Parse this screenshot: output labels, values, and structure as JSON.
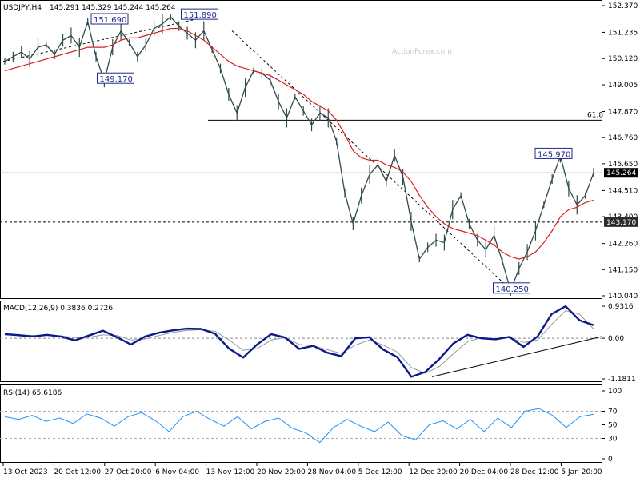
{
  "header": {
    "symbol": "USDJPY,H4",
    "ohlc": "145.291 145.329 145.244 145.264"
  },
  "watermark": "ActionForex.com",
  "chart_data": [
    {
      "type": "line",
      "name": "price",
      "ylim": [
        140.04,
        152.37
      ],
      "price_axis_ticks": [
        "152.370",
        "151.235",
        "150.120",
        "149.005",
        "147.870",
        "146.760",
        "145.650",
        "144.510",
        "143.400",
        "142.260",
        "141.150",
        "140.040"
      ],
      "current_price": "145.264",
      "support_level": "143.170",
      "fib_label": "61.8",
      "fib_level": 147.5,
      "annotations": [
        {
          "label": "151.690",
          "x": 0.18,
          "y": 151.69
        },
        {
          "label": "149.170",
          "x": 0.19,
          "y": 149.17
        },
        {
          "label": "151.890",
          "x": 0.33,
          "y": 151.89
        },
        {
          "label": "140.250",
          "x": 0.85,
          "y": 140.25
        },
        {
          "label": "145.970",
          "x": 0.92,
          "y": 145.97
        }
      ],
      "close_series": [
        150.0,
        150.2,
        150.4,
        150.1,
        150.6,
        150.7,
        150.3,
        150.9,
        151.1,
        150.6,
        151.69,
        150.2,
        149.17,
        150.6,
        151.3,
        150.8,
        150.2,
        150.7,
        151.4,
        151.6,
        151.89,
        151.5,
        151.2,
        150.9,
        151.3,
        150.5,
        149.7,
        148.6,
        147.8,
        148.9,
        149.6,
        149.5,
        149.2,
        148.3,
        147.6,
        148.5,
        147.9,
        147.3,
        147.8,
        147.6,
        146.6,
        144.4,
        143.1,
        144.3,
        145.2,
        145.6,
        144.9,
        146.0,
        145.1,
        143.2,
        141.6,
        142.1,
        142.4,
        142.3,
        143.7,
        144.3,
        143.1,
        142.4,
        142.0,
        142.6,
        141.5,
        140.25,
        141.2,
        141.9,
        142.8,
        143.9,
        145.0,
        145.97,
        144.6,
        143.9,
        144.3,
        145.264
      ],
      "ma_series": [
        149.6,
        149.7,
        149.8,
        149.9,
        150.0,
        150.1,
        150.2,
        150.3,
        150.4,
        150.5,
        150.6,
        150.6,
        150.6,
        150.7,
        150.9,
        151.0,
        151.0,
        151.1,
        151.2,
        151.3,
        151.4,
        151.4,
        151.3,
        151.1,
        150.9,
        150.6,
        150.3,
        150.0,
        149.8,
        149.7,
        149.6,
        149.5,
        149.4,
        149.2,
        149.0,
        148.8,
        148.6,
        148.3,
        148.1,
        147.9,
        147.5,
        146.9,
        146.2,
        145.9,
        145.8,
        145.8,
        145.6,
        145.5,
        145.3,
        144.9,
        144.3,
        143.8,
        143.4,
        143.1,
        142.9,
        142.8,
        142.7,
        142.6,
        142.4,
        142.2,
        141.9,
        141.7,
        141.6,
        141.7,
        141.9,
        142.3,
        142.8,
        143.4,
        143.7,
        143.8,
        144.0,
        144.1
      ]
    },
    {
      "type": "line",
      "name": "macd",
      "title": "MACD(12,26,9) 0.3836 0.2726",
      "ylim": [
        -1.1811,
        0.9316
      ],
      "ticks": [
        "0.9316",
        "0.00",
        "-1.1811"
      ],
      "series": [
        {
          "name": "macd",
          "values": [
            0.12,
            0.09,
            0.05,
            0.1,
            0.05,
            -0.06,
            0.08,
            0.22,
            0.03,
            -0.18,
            0.05,
            0.16,
            0.23,
            0.28,
            0.27,
            0.13,
            -0.3,
            -0.56,
            -0.18,
            0.12,
            0.02,
            -0.31,
            -0.22,
            -0.42,
            -0.52,
            0.0,
            0.03,
            -0.33,
            -0.55,
            -1.12,
            -0.98,
            -0.6,
            -0.15,
            0.1,
            0.0,
            -0.03,
            0.04,
            -0.25,
            0.05,
            0.7,
            0.93,
            0.52,
            0.38
          ]
        },
        {
          "name": "signal",
          "values": [
            0.1,
            0.1,
            0.08,
            0.08,
            0.07,
            0.02,
            0.03,
            0.1,
            0.08,
            -0.05,
            -0.02,
            0.08,
            0.17,
            0.23,
            0.25,
            0.2,
            -0.05,
            -0.35,
            -0.3,
            -0.05,
            0.02,
            -0.18,
            -0.22,
            -0.33,
            -0.44,
            -0.2,
            -0.05,
            -0.2,
            -0.4,
            -0.85,
            -1.02,
            -0.82,
            -0.45,
            -0.1,
            0.02,
            -0.02,
            0.02,
            -0.12,
            -0.05,
            0.4,
            0.8,
            0.7,
            0.27
          ]
        }
      ]
    },
    {
      "type": "line",
      "name": "rsi",
      "title": "RSI(14) 65.6186",
      "ylim": [
        0,
        100
      ],
      "ticks": [
        "100",
        "70",
        "50",
        "30",
        "0"
      ],
      "series": [
        {
          "name": "rsi",
          "values": [
            62,
            58,
            64,
            55,
            60,
            52,
            66,
            60,
            48,
            62,
            68,
            56,
            40,
            62,
            70,
            58,
            48,
            62,
            44,
            55,
            60,
            45,
            38,
            24,
            46,
            58,
            48,
            40,
            54,
            34,
            28,
            50,
            56,
            44,
            58,
            40,
            60,
            46,
            70,
            74,
            64,
            46,
            62,
            65.6
          ]
        }
      ]
    }
  ],
  "x_axis_labels": [
    "13 Oct 2023",
    "20 Oct 12:00",
    "27 Oct 20:00",
    "6 Nov 04:00",
    "13 Nov 12:00",
    "20 Nov 20:00",
    "28 Nov 04:00",
    "5 Dec 12:00",
    "12 Dec 20:00",
    "20 Dec 04:00",
    "28 Dec 12:00",
    "5 Jan 20:00"
  ]
}
